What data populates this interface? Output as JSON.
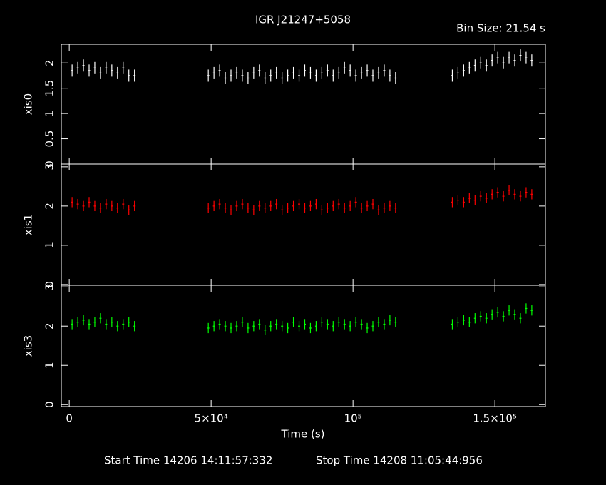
{
  "chart_data": {
    "type": "scatter",
    "title": "IGR J21247+5058",
    "bin_size": "Bin Size: 21.54 s",
    "xlabel": "Time (s)",
    "start_time": "Start Time 14206 14:11:57:332",
    "stop_time": "Stop Time 14208 11:05:44:956",
    "xlim": [
      -2800,
      167800
    ],
    "xticks": [
      0,
      {
        "value": 50000,
        "label": "5×10⁴"
      },
      {
        "value": 100000,
        "label": "10⁵"
      },
      {
        "value": 150000,
        "label": "1.5×10⁵"
      }
    ],
    "x": [
      1000,
      3000,
      5000,
      7000,
      9000,
      11000,
      13000,
      15000,
      17000,
      19000,
      21000,
      23000,
      49000,
      51000,
      53000,
      55000,
      57000,
      59000,
      61000,
      63000,
      65000,
      67000,
      69000,
      71000,
      73000,
      75000,
      77000,
      79000,
      81000,
      83000,
      85000,
      87000,
      89000,
      91000,
      93000,
      95000,
      97000,
      99000,
      101000,
      103000,
      105000,
      107000,
      109000,
      111000,
      113000,
      115000,
      135000,
      137000,
      139000,
      141000,
      143000,
      145000,
      147000,
      149000,
      151000,
      153000,
      155000,
      157000,
      159000,
      161000,
      163000
    ],
    "panels": [
      {
        "ylabel": "xis0",
        "color": "#ffffff",
        "ylim": [
          0,
          2.37
        ],
        "yticks": [
          0,
          0.5,
          1,
          1.5,
          2
        ],
        "error": 0.12,
        "values": [
          1.85,
          1.9,
          1.95,
          1.85,
          1.9,
          1.8,
          1.9,
          1.85,
          1.8,
          1.9,
          1.75,
          1.75,
          1.75,
          1.8,
          1.85,
          1.7,
          1.75,
          1.8,
          1.75,
          1.7,
          1.8,
          1.85,
          1.7,
          1.75,
          1.8,
          1.7,
          1.75,
          1.8,
          1.75,
          1.85,
          1.8,
          1.75,
          1.8,
          1.85,
          1.75,
          1.8,
          1.9,
          1.85,
          1.75,
          1.8,
          1.85,
          1.75,
          1.8,
          1.85,
          1.75,
          1.7,
          1.75,
          1.8,
          1.85,
          1.9,
          1.95,
          2.0,
          1.95,
          2.05,
          2.1,
          2.0,
          2.1,
          2.05,
          2.15,
          2.1,
          2.05
        ]
      },
      {
        "ylabel": "xis1",
        "color": "#ff0000",
        "ylim": [
          -0.02,
          3.07
        ],
        "yticks": [
          0,
          1,
          2,
          3
        ],
        "error": 0.13,
        "values": [
          2.1,
          2.05,
          2.0,
          2.1,
          2.0,
          1.95,
          2.05,
          2.0,
          1.95,
          2.05,
          1.9,
          2.0,
          1.95,
          2.0,
          2.05,
          1.95,
          1.9,
          2.0,
          2.05,
          1.95,
          1.9,
          2.0,
          1.95,
          2.0,
          2.05,
          1.9,
          1.95,
          2.0,
          2.05,
          1.95,
          2.0,
          2.05,
          1.9,
          1.95,
          2.0,
          2.05,
          1.95,
          2.0,
          2.1,
          1.95,
          2.0,
          2.05,
          1.9,
          1.95,
          2.0,
          1.95,
          2.1,
          2.15,
          2.1,
          2.2,
          2.15,
          2.25,
          2.2,
          2.3,
          2.35,
          2.25,
          2.4,
          2.3,
          2.25,
          2.35,
          2.3
        ]
      },
      {
        "ylabel": "xis3",
        "color": "#00ff00",
        "ylim": [
          -0.05,
          3.04
        ],
        "yticks": [
          0,
          1,
          2,
          3
        ],
        "error": 0.13,
        "values": [
          2.05,
          2.1,
          2.15,
          2.05,
          2.1,
          2.2,
          2.05,
          2.1,
          2.0,
          2.05,
          2.1,
          2.0,
          1.95,
          2.0,
          2.05,
          2.0,
          1.95,
          2.0,
          2.1,
          1.95,
          2.0,
          2.05,
          1.9,
          2.0,
          2.05,
          2.0,
          1.95,
          2.1,
          2.0,
          2.05,
          1.95,
          2.0,
          2.1,
          2.05,
          2.0,
          2.1,
          2.05,
          2.0,
          2.1,
          2.05,
          1.95,
          2.0,
          2.1,
          2.05,
          2.15,
          2.1,
          2.05,
          2.1,
          2.15,
          2.1,
          2.2,
          2.25,
          2.2,
          2.3,
          2.35,
          2.25,
          2.4,
          2.3,
          2.2,
          2.45,
          2.4
        ]
      }
    ]
  }
}
